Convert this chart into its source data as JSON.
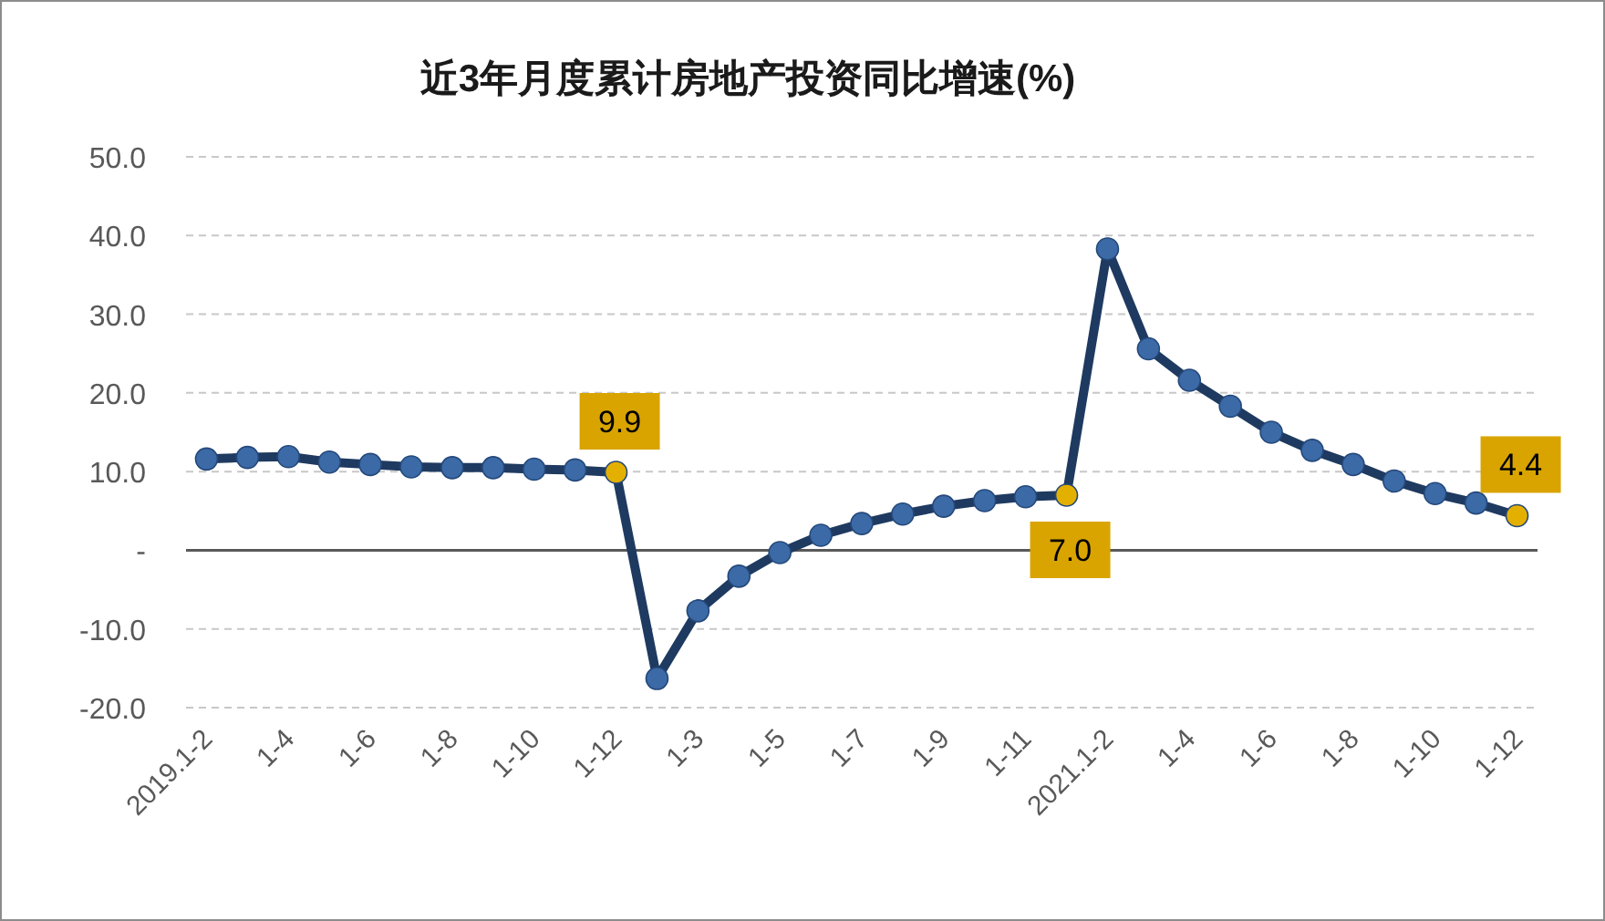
{
  "chart_data": {
    "type": "line",
    "title": "近3年月度累计房地产投资同比增速(%)",
    "categories": [
      "2019.1-2",
      null,
      "1-4",
      null,
      "1-6",
      null,
      "1-8",
      null,
      "1-10",
      null,
      "1-12",
      null,
      "1-3",
      null,
      "1-5",
      null,
      "1-7",
      null,
      "1-9",
      null,
      "1-11",
      null,
      "2021.1-2",
      null,
      "1-4",
      null,
      "1-6",
      null,
      "1-8",
      null,
      "1-10",
      null,
      "1-12"
    ],
    "series": [
      {
        "color": "#1f3a60",
        "values": [
          11.6,
          11.8,
          11.9,
          11.2,
          10.9,
          10.6,
          10.5,
          10.5,
          10.3,
          10.2,
          9.9,
          -16.3,
          -7.7,
          -3.3,
          -0.3,
          1.9,
          3.4,
          4.6,
          5.6,
          6.3,
          6.8,
          7.0,
          38.3,
          25.6,
          21.6,
          18.3,
          15.0,
          12.7,
          10.9,
          8.8,
          7.2,
          6.0,
          4.4
        ],
        "colors": [
          "#3b6aa6",
          "#3b6aa6",
          "#3b6aa6",
          "#3b6aa6",
          "#3b6aa6",
          "#3b6aa6",
          "#3b6aa6",
          "#3b6aa6",
          "#3b6aa6",
          "#3b6aa6",
          "#e3b000",
          "#3b6aa6",
          "#3b6aa6",
          "#3b6aa6",
          "#3b6aa6",
          "#3b6aa6",
          "#3b6aa6",
          "#3b6aa6",
          "#3b6aa6",
          "#3b6aa6",
          "#3b6aa6",
          "#e3b000",
          "#3b6aa6",
          "#3b6aa6",
          "#3b6aa6",
          "#3b6aa6",
          "#3b6aa6",
          "#3b6aa6",
          "#3b6aa6",
          "#3b6aa6",
          "#3b6aa6",
          "#3b6aa6",
          "#e3b000"
        ],
        "value_labels": [
          null,
          null,
          null,
          null,
          null,
          null,
          null,
          null,
          null,
          null,
          "9.9",
          null,
          null,
          null,
          null,
          null,
          null,
          null,
          null,
          null,
          null,
          "7.0",
          null,
          null,
          null,
          null,
          null,
          null,
          null,
          null,
          null,
          null,
          "4.4"
        ]
      }
    ],
    "ylim": [
      -20,
      50
    ],
    "yticks": [
      {
        "value": -20,
        "label": "-20.0"
      },
      {
        "value": -10,
        "label": "-10.0"
      },
      {
        "value": 0,
        "label": "-"
      },
      {
        "value": 10,
        "label": "10.0"
      },
      {
        "value": 20,
        "label": "20.0"
      },
      {
        "value": 30,
        "label": "30.0"
      },
      {
        "value": 40,
        "label": "40.0"
      },
      {
        "value": 50,
        "label": "50.0"
      }
    ],
    "grid": "y",
    "marker": "circle",
    "line_style": "solid"
  }
}
